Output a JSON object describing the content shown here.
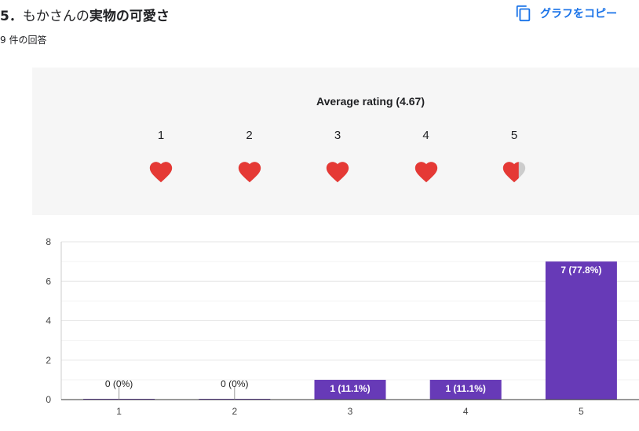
{
  "question": {
    "number": "5．",
    "prefix": "もかさんの",
    "bold": "実物の可愛さ"
  },
  "responses": "9 件の回答",
  "copy_button": {
    "label": "グラフをコピー",
    "icon": "copy-icon",
    "color": "#1a73e8"
  },
  "rating": {
    "average_label": "Average rating (4.67)",
    "average": 4.67,
    "scale": [
      "1",
      "2",
      "3",
      "4",
      "5"
    ],
    "heart_color": "#e53935",
    "empty_color": "#cccccc",
    "panel_color": "#f6f6f6"
  },
  "chart_data": {
    "type": "bar",
    "categories": [
      "1",
      "2",
      "3",
      "4",
      "5"
    ],
    "values": [
      0,
      0,
      1,
      1,
      7
    ],
    "labels": [
      "0 (0%)",
      "0 (0%)",
      "1 (11.1%)",
      "1 (11.1%)",
      "7 (77.8%)"
    ],
    "ylim": [
      0,
      8
    ],
    "yticks": [
      "0",
      "2",
      "4",
      "6",
      "8"
    ],
    "grid": true,
    "bar_color": "#673ab7"
  }
}
